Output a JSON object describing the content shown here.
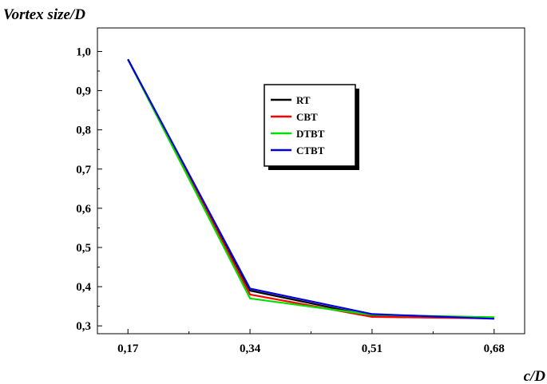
{
  "chart_data": {
    "type": "line",
    "ylabel": "Vortex size/D",
    "xlabel": "c/D",
    "categories": [
      "0,17",
      "0,34",
      "0,51",
      "0,68"
    ],
    "x": [
      0.17,
      0.34,
      0.51,
      0.68
    ],
    "xlim": [
      0.1275,
      0.7225
    ],
    "ylim": [
      0.28,
      1.06
    ],
    "yticks": [
      0.3,
      0.4,
      0.5,
      0.6,
      0.7,
      0.8,
      0.9,
      1.0
    ],
    "ytick_labels": [
      "0,3",
      "0,4",
      "0,5",
      "0,6",
      "0,7",
      "0,8",
      "0,9",
      "1,0"
    ],
    "legend_position": "upper-center",
    "grid": false,
    "series": [
      {
        "name": "RT",
        "color": "#000000",
        "values": [
          0.98,
          0.39,
          0.325,
          0.32
        ]
      },
      {
        "name": "CBT",
        "color": "#ff0000",
        "values": [
          0.98,
          0.38,
          0.323,
          0.319
        ]
      },
      {
        "name": "DTBT",
        "color": "#00e000",
        "values": [
          0.98,
          0.37,
          0.328,
          0.322
        ]
      },
      {
        "name": "CTBT",
        "color": "#0000dd",
        "values": [
          0.98,
          0.395,
          0.33,
          0.318
        ]
      }
    ]
  }
}
